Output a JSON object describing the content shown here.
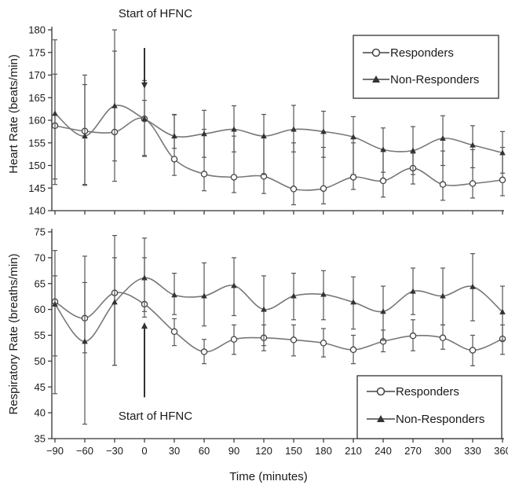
{
  "colors": {
    "line": "#777777",
    "axis": "#333333",
    "error_bar": "#555555",
    "marker_fill": "#ffffff",
    "marker_dark": "#333333"
  },
  "chart_data": [
    {
      "type": "line",
      "id": "heart-rate",
      "ylabel": "Heart Rate (beats/min)",
      "ylim": [
        140,
        180
      ],
      "yticks": [
        140,
        145,
        150,
        155,
        160,
        165,
        170,
        175,
        180
      ],
      "x": [
        -90,
        -60,
        -30,
        0,
        30,
        60,
        90,
        120,
        150,
        180,
        210,
        240,
        270,
        300,
        330,
        360
      ],
      "xlim": [
        -90,
        360
      ],
      "xticks": [
        -90,
        -60,
        -30,
        0,
        30,
        60,
        90,
        120,
        150,
        180,
        210,
        240,
        270,
        300,
        330,
        360
      ],
      "grid": false,
      "legend_position": "top-right",
      "annotation": {
        "text": "Start of HFNC",
        "x": 0,
        "arrow_from": 176,
        "arrow_to": 167
      },
      "series": [
        {
          "name": "Responders",
          "marker": "open-circle",
          "values": [
            158.8,
            157.6,
            157.4,
            160.3,
            151.4,
            148.1,
            147.4,
            147.6,
            144.8,
            144.9,
            147.4,
            146.6,
            149.4,
            145.8,
            146.0,
            146.8
          ],
          "err_low": [
            147.0,
            145.8,
            146.5,
            152.0,
            147.8,
            144.4,
            144.0,
            143.8,
            141.3,
            141.5,
            144.7,
            143.0,
            145.9,
            142.3,
            142.8,
            143.3
          ],
          "err_high": [
            170.2,
            170.0,
            180.0,
            168.8,
            161.2,
            158.0,
            156.5,
            156.2,
            155.0,
            154.0,
            155.0,
            153.5,
            152.7,
            153.2,
            153.5,
            154.0
          ]
        },
        {
          "name": "Non-Responders",
          "marker": "filled-triangle",
          "values": [
            161.5,
            156.5,
            163.2,
            160.3,
            156.5,
            157.0,
            158.0,
            156.5,
            158.0,
            157.5,
            156.3,
            153.5,
            153.3,
            156.0,
            154.5,
            152.8
          ],
          "err_low": [
            145.8,
            145.6,
            151.0,
            152.2,
            153.8,
            151.8,
            153.0,
            148.0,
            153.0,
            151.8,
            148.0,
            148.5,
            148.0,
            150.0,
            149.5,
            148.3
          ],
          "err_high": [
            177.8,
            167.9,
            175.3,
            164.4,
            161.3,
            162.2,
            163.2,
            161.3,
            163.3,
            162.0,
            160.8,
            158.3,
            158.6,
            161.0,
            158.8,
            157.5
          ]
        }
      ]
    },
    {
      "type": "line",
      "id": "respiratory-rate",
      "xlabel": "Time (minutes)",
      "ylabel": "Respiratory Rate (breaths/min)",
      "ylim": [
        35,
        75
      ],
      "yticks": [
        35,
        40,
        45,
        50,
        55,
        60,
        65,
        70,
        75
      ],
      "x": [
        -90,
        -60,
        -30,
        0,
        30,
        60,
        90,
        120,
        150,
        180,
        210,
        240,
        270,
        300,
        330,
        360
      ],
      "xlim": [
        -90,
        360
      ],
      "xticks": [
        -90,
        -60,
        -30,
        0,
        30,
        60,
        90,
        120,
        150,
        180,
        210,
        240,
        270,
        300,
        330,
        360
      ],
      "grid": false,
      "legend_position": "bottom-right",
      "annotation": {
        "text": "Start of HFNC",
        "x": 0,
        "arrow_from": 43,
        "arrow_to": 57.5
      },
      "series": [
        {
          "name": "Responders",
          "marker": "open-circle",
          "values": [
            61.5,
            58.3,
            63.2,
            61.0,
            55.7,
            51.8,
            54.2,
            54.5,
            54.1,
            53.5,
            52.2,
            53.8,
            54.9,
            54.5,
            52.1,
            54.3
          ],
          "err_low": [
            51.0,
            37.8,
            49.2,
            58.5,
            53.0,
            49.5,
            51.3,
            52.0,
            51.0,
            50.8,
            49.5,
            51.8,
            52.0,
            52.3,
            49.1,
            51.3
          ],
          "err_high": [
            71.4,
            70.3,
            74.3,
            73.8,
            58.2,
            54.2,
            57.0,
            57.0,
            57.0,
            56.3,
            55.0,
            56.0,
            58.0,
            57.0,
            55.0,
            57.0
          ]
        },
        {
          "name": "Non-Responders",
          "marker": "filled-triangle",
          "values": [
            61.0,
            53.8,
            61.4,
            66.1,
            62.8,
            62.6,
            64.6,
            60.0,
            62.6,
            62.9,
            61.4,
            59.6,
            63.5,
            62.6,
            64.4,
            59.5
          ],
          "err_low": [
            43.7,
            51.6,
            49.2,
            59.6,
            59.0,
            56.8,
            58.8,
            53.0,
            58.0,
            58.0,
            56.2,
            54.0,
            59.0,
            57.0,
            57.8,
            54.0
          ],
          "err_high": [
            66.5,
            65.2,
            70.0,
            70.0,
            67.0,
            69.0,
            70.0,
            66.5,
            67.0,
            67.5,
            66.3,
            64.5,
            68.0,
            68.0,
            70.8,
            64.5
          ]
        }
      ]
    }
  ]
}
